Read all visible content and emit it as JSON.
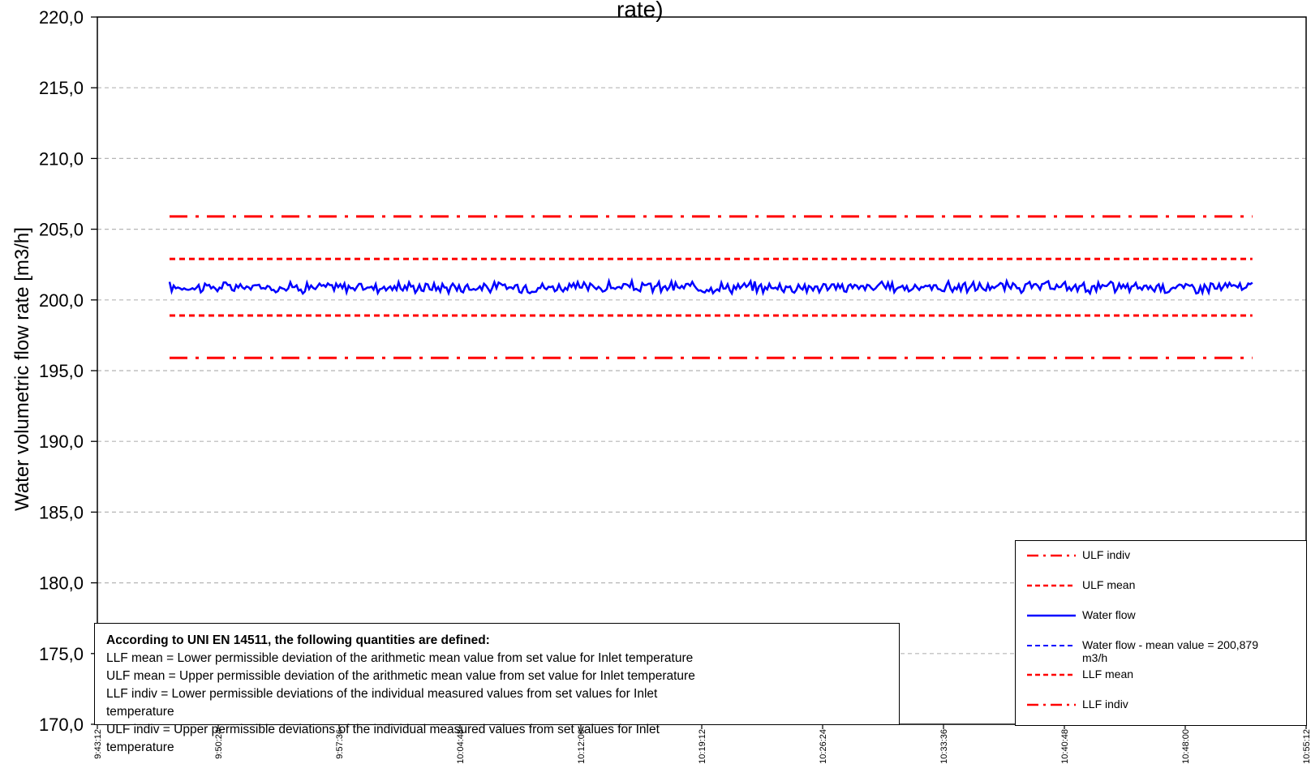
{
  "chart_data": {
    "type": "line",
    "title": "rate)",
    "ylabel": "Water volumetric flow rate [m3/h]",
    "ylim": [
      170,
      220
    ],
    "ytick_labels": [
      "170,0",
      "175,0",
      "180,0",
      "185,0",
      "190,0",
      "195,0",
      "200,0",
      "205,0",
      "210,0",
      "215,0",
      "220,0"
    ],
    "yticks": [
      170,
      175,
      180,
      185,
      190,
      195,
      200,
      205,
      210,
      215,
      220
    ],
    "xtick_labels": [
      "9:43:12",
      "9:50:24",
      "9:57:36",
      "10:04:48",
      "10:12:00",
      "10:19:12",
      "10:26:24",
      "10:33:36",
      "10:40:48",
      "10:48:00",
      "10:55:12"
    ],
    "x_range": [
      "9:43:12",
      "10:55:12"
    ],
    "x_data_range": [
      "9:47:30",
      "10:52:00"
    ],
    "grid": "horizontal dashed",
    "series": [
      {
        "name": "ULF indiv",
        "style": "dash-dot",
        "color": "#ff0000",
        "values": [
          205.9,
          205.9
        ]
      },
      {
        "name": "ULF mean",
        "style": "dashed",
        "color": "#ff0000",
        "values": [
          202.9,
          202.9
        ]
      },
      {
        "name": "Water flow",
        "style": "solid",
        "color": "#0000ff",
        "mean": 200.9,
        "noise_range": [
          200.3,
          201.6
        ]
      },
      {
        "name": "LLF mean",
        "style": "dashed",
        "color": "#ff0000",
        "values": [
          198.9,
          198.9
        ]
      },
      {
        "name": "LLF indiv",
        "style": "dash-dot",
        "color": "#ff0000",
        "values": [
          195.9,
          195.9
        ]
      }
    ],
    "legend": {
      "position": "bottom-right",
      "entries": [
        {
          "label": "ULF indiv",
          "style": "dash-dot",
          "color": "#ff0000"
        },
        {
          "label": "ULF mean",
          "style": "dashed",
          "color": "#ff0000"
        },
        {
          "label": "Water flow",
          "style": "solid",
          "color": "#0000ff"
        },
        {
          "label": "Water flow - mean value = 200,879",
          "label2": "m3/h",
          "style": "dashed",
          "color": "#0000ff"
        },
        {
          "label": "LLF mean",
          "style": "dashed",
          "color": "#ff0000"
        },
        {
          "label": "LLF indiv",
          "style": "dash-dot",
          "color": "#ff0000"
        }
      ]
    }
  },
  "note": {
    "heading": "According  to UNI EN 14511, the following quantities are defined:",
    "lines": [
      "LLF mean = Lower permissible deviation of the arithmetic mean value from set value  for Inlet  temperature",
      "ULF mean = Upper permissible deviation of the arithmetic mean value from set value  for Inlet  temperature",
      "LLF indiv = Lower permissible deviations of the individual measured values from set  values  for  Inlet",
      "temperature",
      "ULF indiv = Upper permissible deviations of the individual measured values from set  values  for  Inlet",
      "temperature"
    ]
  }
}
